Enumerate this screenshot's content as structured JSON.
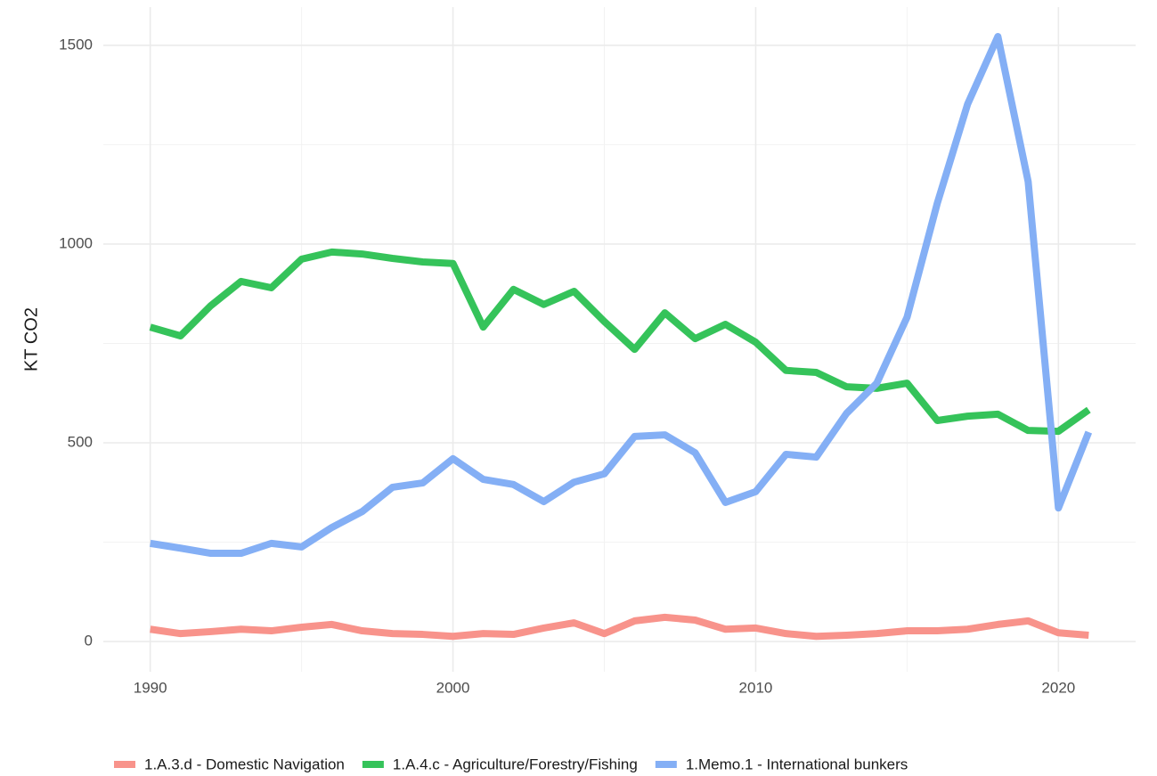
{
  "chart_data": {
    "type": "line",
    "y_label": "KT CO2",
    "x": [
      1990,
      1991,
      1992,
      1993,
      1994,
      1995,
      1996,
      1997,
      1998,
      1999,
      2000,
      2001,
      2002,
      2003,
      2004,
      2005,
      2006,
      2007,
      2008,
      2009,
      2010,
      2011,
      2012,
      2013,
      2014,
      2015,
      2016,
      2017,
      2018,
      2019,
      2020,
      2021
    ],
    "series": [
      {
        "name": "1.A.3.d - Domestic Navigation",
        "color": "#f8938b",
        "values": [
          31,
          20,
          25,
          31,
          27,
          36,
          43,
          27,
          20,
          18,
          13,
          20,
          18,
          34,
          47,
          20,
          52,
          61,
          54,
          31,
          34,
          20,
          13,
          16,
          20,
          27,
          27,
          31,
          43,
          52,
          22,
          16
        ]
      },
      {
        "name": "1.A.4.c - Agriculture/Forestry/Fishing",
        "color": "#35c35a",
        "values": [
          791,
          769,
          845,
          906,
          890,
          962,
          980,
          975,
          964,
          955,
          951,
          791,
          886,
          848,
          881,
          805,
          735,
          827,
          762,
          798,
          753,
          682,
          677,
          641,
          637,
          650,
          556,
          567,
          572,
          531,
          529,
          583
        ]
      },
      {
        "name": "1.Memo.1 - International bunkers",
        "color": "#84aff5",
        "values": [
          247,
          235,
          222,
          222,
          247,
          238,
          287,
          327,
          388,
          399,
          460,
          408,
          395,
          352,
          401,
          422,
          516,
          520,
          475,
          350,
          377,
          471,
          464,
          574,
          650,
          816,
          1103,
          1352,
          1522,
          1157,
          336,
          527
        ]
      }
    ],
    "xlim": [
      1988.45,
      2022.55
    ],
    "xticks": [
      1990,
      2000,
      2010,
      2020
    ],
    "ylim": [
      -76,
      1596
    ],
    "yticks": [
      0,
      500,
      1000,
      1500
    ],
    "grid": true,
    "legend": "bottom"
  }
}
